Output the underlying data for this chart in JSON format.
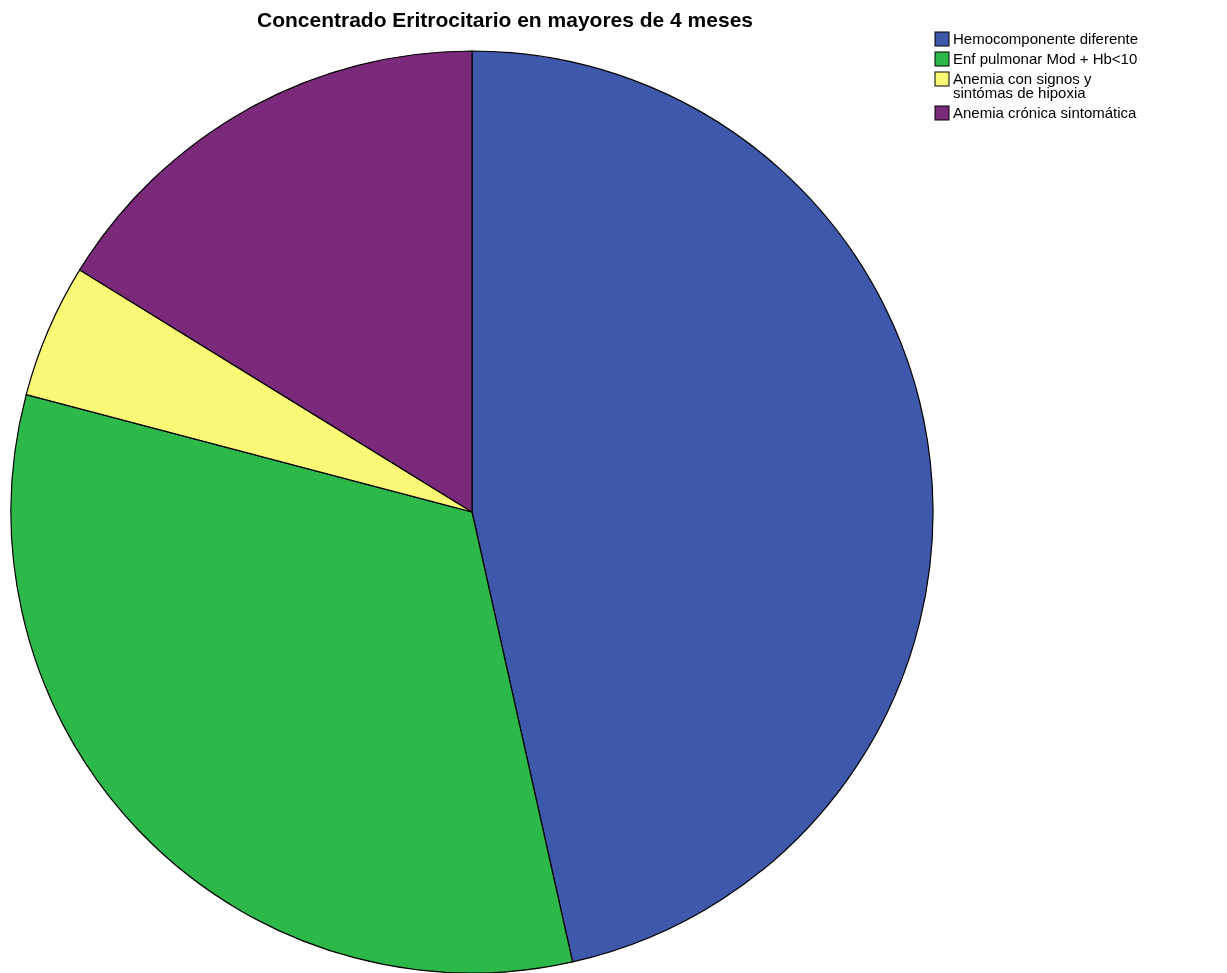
{
  "chart_data": {
    "type": "pie",
    "title": "Concentrado Eritrocitario en mayores de 4 meses",
    "categories": [
      "Hemocomponente diferente",
      "Enf pulmonar Mod + Hb<10",
      "Anemia con signos y sintómas de hipoxia",
      "Anemia crónica sintomática"
    ],
    "values": [
      46.5,
      32.6,
      4.7,
      16.2
    ],
    "colors": [
      "#3e58ac",
      "#2db84a",
      "#fbf876",
      "#7b2a7b"
    ],
    "legend": "top right"
  }
}
